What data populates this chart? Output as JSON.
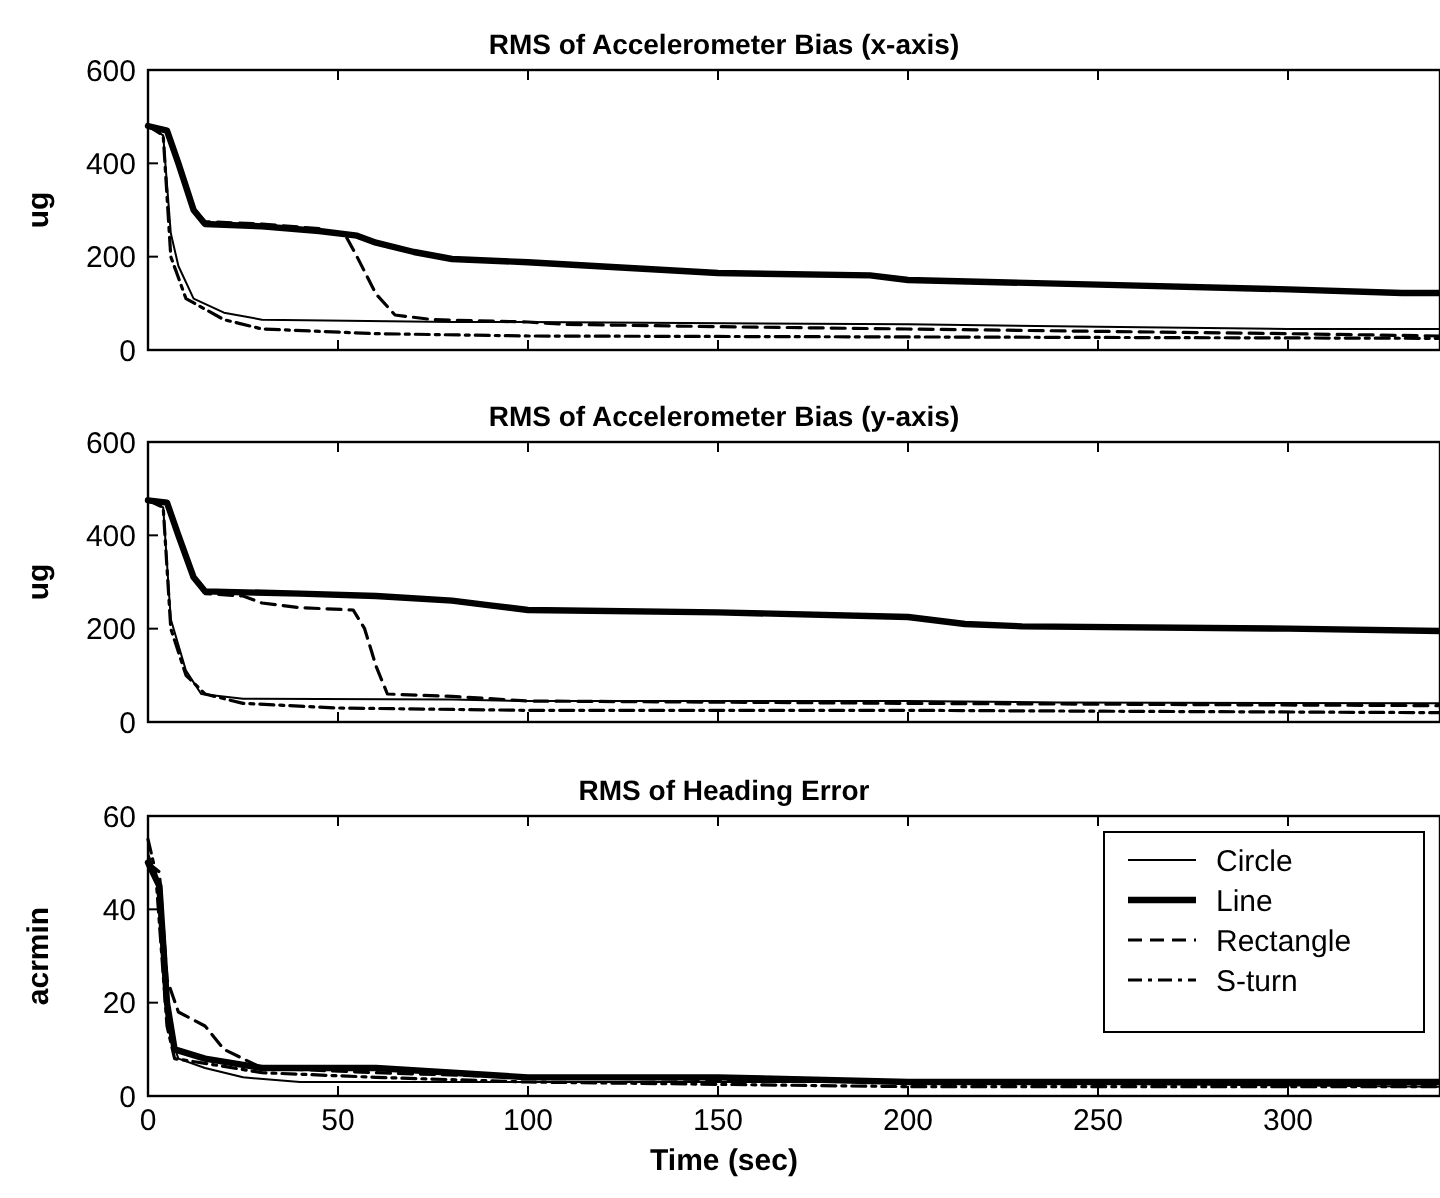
{
  "chart_data": [
    {
      "type": "line",
      "title": "RMS of Accelerometer Bias (x-axis)",
      "ylabel": "ug",
      "xlim": [
        0,
        340
      ],
      "xticks": [
        0,
        50,
        100,
        150,
        200,
        250,
        300
      ],
      "ylim": [
        0,
        600
      ],
      "yticks": [
        0,
        200,
        400,
        600
      ],
      "tick_labels": "y",
      "grid": false,
      "legend": false,
      "series": [
        {
          "color": "#000000",
          "line_style": "solid",
          "x": [
            0,
            4,
            6,
            8,
            12,
            20,
            30,
            80,
            100,
            200,
            250,
            300,
            340
          ],
          "values": [
            480,
            460,
            250,
            180,
            110,
            80,
            65,
            60,
            60,
            55,
            50,
            45,
            45
          ]
        },
        {
          "color": "#000000",
          "line_style": "solid",
          "x": [
            0,
            5,
            8,
            12,
            15,
            30,
            45,
            55,
            60,
            70,
            80,
            100,
            150,
            190,
            200,
            250,
            300,
            330,
            340
          ],
          "values": [
            480,
            470,
            400,
            300,
            270,
            265,
            255,
            245,
            230,
            210,
            195,
            188,
            165,
            160,
            150,
            140,
            130,
            122,
            122
          ]
        },
        {
          "color": "#000000",
          "line_style": "dashed",
          "x": [
            0,
            5,
            8,
            12,
            15,
            30,
            45,
            52,
            55,
            60,
            65,
            75,
            100,
            110,
            150,
            200,
            250,
            300,
            340
          ],
          "values": [
            480,
            470,
            400,
            300,
            275,
            270,
            260,
            245,
            200,
            120,
            75,
            65,
            60,
            55,
            50,
            45,
            40,
            35,
            30
          ]
        },
        {
          "color": "#000000",
          "line_style": "dashdot",
          "x": [
            0,
            4,
            6,
            10,
            20,
            30,
            60,
            100,
            200,
            340
          ],
          "values": [
            480,
            460,
            200,
            110,
            65,
            45,
            35,
            30,
            28,
            25
          ]
        }
      ]
    },
    {
      "type": "line",
      "title": "RMS of Accelerometer Bias (y-axis)",
      "ylabel": "ug",
      "xlim": [
        0,
        340
      ],
      "xticks": [
        0,
        50,
        100,
        150,
        200,
        250,
        300
      ],
      "ylim": [
        0,
        600
      ],
      "yticks": [
        0,
        200,
        400,
        600
      ],
      "tick_labels": "y",
      "grid": false,
      "legend": false,
      "series": [
        {
          "color": "#000000",
          "line_style": "solid",
          "x": [
            0,
            4,
            6,
            10,
            14,
            25,
            80,
            100,
            200,
            240,
            340
          ],
          "values": [
            475,
            460,
            220,
            110,
            60,
            50,
            48,
            45,
            45,
            42,
            40
          ]
        },
        {
          "color": "#000000",
          "line_style": "solid",
          "x": [
            0,
            5,
            8,
            12,
            15,
            40,
            60,
            80,
            90,
            100,
            150,
            200,
            215,
            230,
            300,
            340
          ],
          "values": [
            475,
            470,
            400,
            310,
            280,
            275,
            270,
            260,
            250,
            240,
            235,
            225,
            210,
            205,
            200,
            195
          ]
        },
        {
          "color": "#000000",
          "line_style": "dashed",
          "x": [
            0,
            5,
            8,
            12,
            15,
            25,
            30,
            40,
            54,
            57,
            60,
            63,
            80,
            100,
            200,
            340
          ],
          "values": [
            475,
            470,
            400,
            310,
            275,
            270,
            255,
            245,
            240,
            200,
            120,
            60,
            55,
            45,
            40,
            35
          ]
        },
        {
          "color": "#000000",
          "line_style": "dashdot",
          "x": [
            0,
            4,
            6,
            10,
            15,
            25,
            50,
            100,
            200,
            340
          ],
          "values": [
            475,
            460,
            200,
            100,
            60,
            40,
            30,
            25,
            25,
            20
          ]
        }
      ]
    },
    {
      "type": "line",
      "title": "RMS of Heading Error",
      "xlabel": "Time (sec)",
      "ylabel": "acrmin",
      "xlim": [
        0,
        340
      ],
      "xticks": [
        0,
        50,
        100,
        150,
        200,
        250,
        300
      ],
      "ylim": [
        0,
        60
      ],
      "yticks": [
        0,
        20,
        40,
        60
      ],
      "grid": false,
      "legend": "top right",
      "series": [
        {
          "name": "Circle",
          "color": "#000000",
          "line_style": "solid",
          "x": [
            0,
            3,
            5,
            8,
            15,
            25,
            40,
            100,
            200,
            340
          ],
          "values": [
            52,
            45,
            15,
            8,
            6,
            4,
            3,
            3,
            3,
            2
          ]
        },
        {
          "name": "Line",
          "color": "#000000",
          "line_style": "solid",
          "x": [
            0,
            3,
            5,
            7,
            15,
            30,
            60,
            100,
            150,
            200,
            250,
            340
          ],
          "values": [
            50,
            45,
            20,
            10,
            8,
            6,
            6,
            4,
            4,
            3,
            3,
            3
          ]
        },
        {
          "name": "Rectangle",
          "color": "#000000",
          "line_style": "dashed",
          "x": [
            0,
            3,
            5,
            8,
            15,
            20,
            30,
            60,
            100,
            200,
            340
          ],
          "values": [
            50,
            48,
            25,
            18,
            15,
            10,
            6,
            5,
            4,
            3,
            3
          ]
        },
        {
          "name": "S-turn",
          "color": "#000000",
          "line_style": "dashdot",
          "x": [
            0,
            2,
            5,
            7,
            15,
            30,
            60,
            100,
            200,
            340
          ],
          "values": [
            55,
            48,
            15,
            8,
            7,
            5,
            4,
            3,
            2,
            2
          ]
        }
      ]
    }
  ]
}
